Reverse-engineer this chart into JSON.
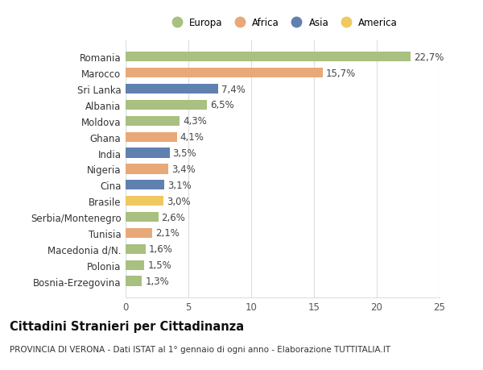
{
  "countries": [
    "Romania",
    "Marocco",
    "Sri Lanka",
    "Albania",
    "Moldova",
    "Ghana",
    "India",
    "Nigeria",
    "Cina",
    "Brasile",
    "Serbia/Montenegro",
    "Tunisia",
    "Macedonia d/N.",
    "Polonia",
    "Bosnia-Erzegovina"
  ],
  "values": [
    22.7,
    15.7,
    7.4,
    6.5,
    4.3,
    4.1,
    3.5,
    3.4,
    3.1,
    3.0,
    2.6,
    2.1,
    1.6,
    1.5,
    1.3
  ],
  "labels": [
    "22,7%",
    "15,7%",
    "7,4%",
    "6,5%",
    "4,3%",
    "4,1%",
    "3,5%",
    "3,4%",
    "3,1%",
    "3,0%",
    "2,6%",
    "2,1%",
    "1,6%",
    "1,5%",
    "1,3%"
  ],
  "regions": [
    "Europa",
    "Africa",
    "Asia",
    "Europa",
    "Europa",
    "Africa",
    "Asia",
    "Africa",
    "Asia",
    "America",
    "Europa",
    "Africa",
    "Europa",
    "Europa",
    "Europa"
  ],
  "colors": {
    "Europa": "#a8c080",
    "Africa": "#e8a878",
    "Asia": "#6080b0",
    "America": "#f0c860"
  },
  "legend_order": [
    "Europa",
    "Africa",
    "Asia",
    "America"
  ],
  "xlim": [
    0,
    25
  ],
  "xticks": [
    0,
    5,
    10,
    15,
    20,
    25
  ],
  "title": "Cittadini Stranieri per Cittadinanza",
  "subtitle": "PROVINCIA DI VERONA - Dati ISTAT al 1° gennaio di ogni anno - Elaborazione TUTTITALIA.IT",
  "background_color": "#ffffff",
  "grid_color": "#dddddd",
  "bar_height": 0.62,
  "label_fontsize": 8.5,
  "tick_fontsize": 8.5,
  "title_fontsize": 10.5,
  "subtitle_fontsize": 7.5
}
